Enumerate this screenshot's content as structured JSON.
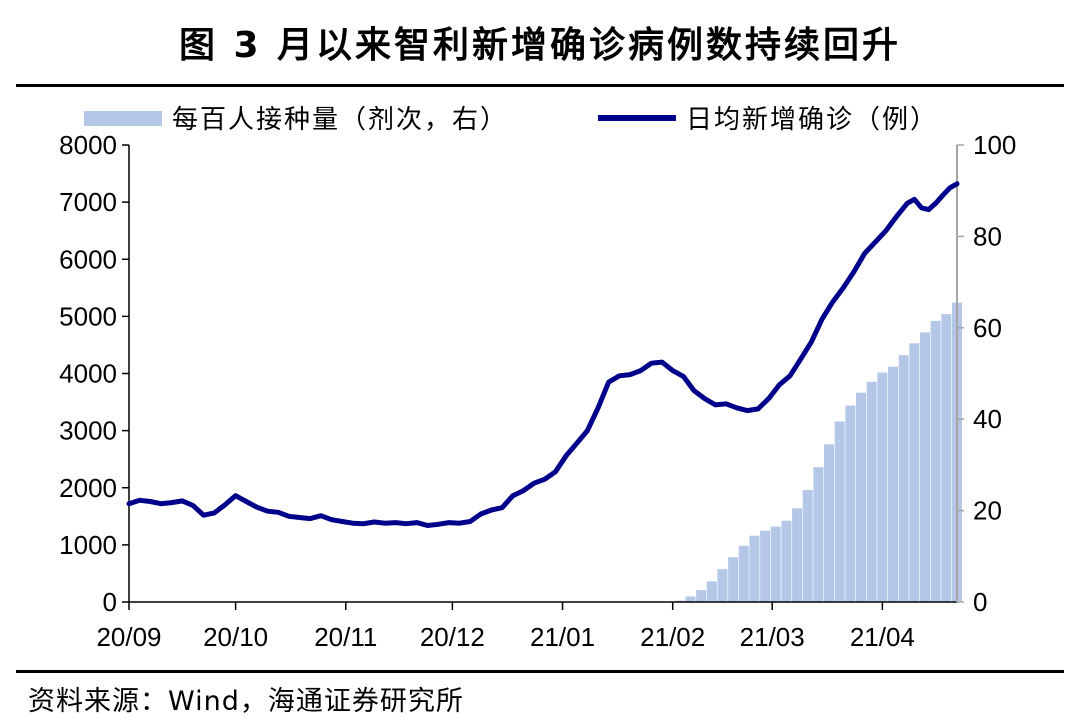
{
  "header": {
    "title": "图  3 月以来智利新增确诊病例数持续回升"
  },
  "footer": {
    "source": "资料来源：Wind，海通证券研究所"
  },
  "chart_data": [
    {
      "type": "bar",
      "series": [
        {
          "name": "每百人接种量（剂次，右）",
          "axis": "right",
          "color": "#b4c7e7",
          "points": [
            [
              "2021-02-03",
              0.3
            ],
            [
              "2021-02-06",
              1.2
            ],
            [
              "2021-02-09",
              2.6
            ],
            [
              "2021-02-12",
              4.5
            ],
            [
              "2021-02-15",
              7.2
            ],
            [
              "2021-02-18",
              9.8
            ],
            [
              "2021-02-21",
              12.3
            ],
            [
              "2021-02-24",
              14.5
            ],
            [
              "2021-02-27",
              15.6
            ],
            [
              "2021-03-02",
              16.5
            ],
            [
              "2021-03-05",
              17.8
            ],
            [
              "2021-03-08",
              20.5
            ],
            [
              "2021-03-11",
              24.5
            ],
            [
              "2021-03-14",
              29.5
            ],
            [
              "2021-03-17",
              34.5
            ],
            [
              "2021-03-20",
              39.5
            ],
            [
              "2021-03-23",
              43.0
            ],
            [
              "2021-03-26",
              45.8
            ],
            [
              "2021-03-29",
              48.2
            ],
            [
              "2021-04-01",
              50.2
            ],
            [
              "2021-04-04",
              51.5
            ],
            [
              "2021-04-07",
              54.0
            ],
            [
              "2021-04-10",
              56.6
            ],
            [
              "2021-04-13",
              59.0
            ],
            [
              "2021-04-16",
              61.5
            ],
            [
              "2021-04-19",
              63.0
            ],
            [
              "2021-04-22",
              65.5
            ]
          ]
        },
        {
          "name": "日均新增确诊（例）",
          "type": "line",
          "axis": "left",
          "color": "#00008b",
          "points": [
            [
              "2020-09-01",
              1720
            ],
            [
              "2020-09-04",
              1780
            ],
            [
              "2020-09-07",
              1760
            ],
            [
              "2020-09-10",
              1720
            ],
            [
              "2020-09-13",
              1740
            ],
            [
              "2020-09-16",
              1770
            ],
            [
              "2020-09-19",
              1690
            ],
            [
              "2020-09-22",
              1520
            ],
            [
              "2020-09-25",
              1560
            ],
            [
              "2020-09-28",
              1700
            ],
            [
              "2020-10-01",
              1860
            ],
            [
              "2020-10-04",
              1760
            ],
            [
              "2020-10-07",
              1660
            ],
            [
              "2020-10-10",
              1590
            ],
            [
              "2020-10-13",
              1570
            ],
            [
              "2020-10-16",
              1500
            ],
            [
              "2020-10-19",
              1480
            ],
            [
              "2020-10-22",
              1460
            ],
            [
              "2020-10-25",
              1510
            ],
            [
              "2020-10-28",
              1440
            ],
            [
              "2020-10-31",
              1410
            ],
            [
              "2020-11-03",
              1380
            ],
            [
              "2020-11-06",
              1370
            ],
            [
              "2020-11-09",
              1400
            ],
            [
              "2020-11-12",
              1380
            ],
            [
              "2020-11-15",
              1390
            ],
            [
              "2020-11-18",
              1370
            ],
            [
              "2020-11-21",
              1390
            ],
            [
              "2020-11-24",
              1340
            ],
            [
              "2020-11-27",
              1360
            ],
            [
              "2020-11-30",
              1390
            ],
            [
              "2020-12-03",
              1380
            ],
            [
              "2020-12-06",
              1410
            ],
            [
              "2020-12-09",
              1540
            ],
            [
              "2020-12-12",
              1610
            ],
            [
              "2020-12-15",
              1650
            ],
            [
              "2020-12-18",
              1860
            ],
            [
              "2020-12-21",
              1950
            ],
            [
              "2020-12-24",
              2080
            ],
            [
              "2020-12-27",
              2150
            ],
            [
              "2020-12-30",
              2280
            ],
            [
              "2021-01-02",
              2560
            ],
            [
              "2021-01-05",
              2780
            ],
            [
              "2021-01-08",
              3000
            ],
            [
              "2021-01-11",
              3400
            ],
            [
              "2021-01-14",
              3850
            ],
            [
              "2021-01-17",
              3960
            ],
            [
              "2021-01-20",
              3980
            ],
            [
              "2021-01-23",
              4050
            ],
            [
              "2021-01-26",
              4180
            ],
            [
              "2021-01-29",
              4200
            ],
            [
              "2021-02-01",
              4050
            ],
            [
              "2021-02-04",
              3950
            ],
            [
              "2021-02-07",
              3700
            ],
            [
              "2021-02-10",
              3560
            ],
            [
              "2021-02-13",
              3450
            ],
            [
              "2021-02-16",
              3470
            ],
            [
              "2021-02-19",
              3400
            ],
            [
              "2021-02-22",
              3350
            ],
            [
              "2021-02-25",
              3380
            ],
            [
              "2021-02-28",
              3560
            ],
            [
              "2021-03-03",
              3800
            ],
            [
              "2021-03-06",
              3960
            ],
            [
              "2021-03-09",
              4250
            ],
            [
              "2021-03-12",
              4550
            ],
            [
              "2021-03-15",
              4950
            ],
            [
              "2021-03-18",
              5250
            ],
            [
              "2021-03-21",
              5500
            ],
            [
              "2021-03-24",
              5780
            ],
            [
              "2021-03-27",
              6100
            ],
            [
              "2021-03-30",
              6300
            ],
            [
              "2021-04-02",
              6500
            ],
            [
              "2021-04-05",
              6750
            ],
            [
              "2021-04-08",
              6980
            ],
            [
              "2021-04-10",
              7050
            ],
            [
              "2021-04-12",
              6900
            ],
            [
              "2021-04-14",
              6870
            ],
            [
              "2021-04-16",
              6980
            ],
            [
              "2021-04-18",
              7120
            ],
            [
              "2021-04-20",
              7250
            ],
            [
              "2021-04-22",
              7320
            ]
          ]
        }
      ],
      "x_ticks": [
        [
          "2020-09-01",
          "20/09"
        ],
        [
          "2020-10-01",
          "20/10"
        ],
        [
          "2020-11-01",
          "20/11"
        ],
        [
          "2020-12-01",
          "20/12"
        ],
        [
          "2021-01-01",
          "21/01"
        ],
        [
          "2021-02-01",
          "21/02"
        ],
        [
          "2021-03-01",
          "21/03"
        ],
        [
          "2021-04-01",
          "21/04"
        ]
      ],
      "xlim": [
        "2020-09-01",
        "2021-04-22"
      ],
      "ylim_left": [
        0,
        8000
      ],
      "yticks_left": [
        0,
        1000,
        2000,
        3000,
        4000,
        5000,
        6000,
        7000,
        8000
      ],
      "ylim_right": [
        0,
        100
      ],
      "yticks_right": [
        0,
        20,
        40,
        60,
        80,
        100
      ],
      "grid": false,
      "legend_position": "top"
    }
  ]
}
